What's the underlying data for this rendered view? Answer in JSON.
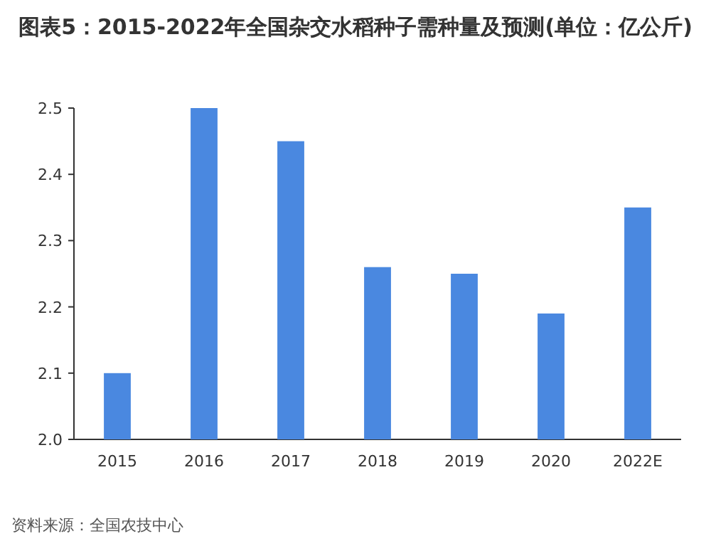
{
  "chart_data": {
    "type": "bar",
    "title": "图表5：2015-2022年全国杂交水稻种子需种量及预测(单位：亿公斤)",
    "categories": [
      "2015",
      "2016",
      "2017",
      "2018",
      "2019",
      "2020",
      "2022E"
    ],
    "values": [
      2.1,
      2.5,
      2.45,
      2.26,
      2.25,
      2.19,
      2.35
    ],
    "color": "#4a88e0",
    "ylim": [
      2.0,
      2.5
    ],
    "yticks": [
      {
        "value": 2.0,
        "label": "2.0"
      },
      2.1,
      2.2,
      2.3,
      2.4,
      2.5
    ],
    "grid": false,
    "annotations": [
      "资料来源：全国农技中心"
    ]
  }
}
